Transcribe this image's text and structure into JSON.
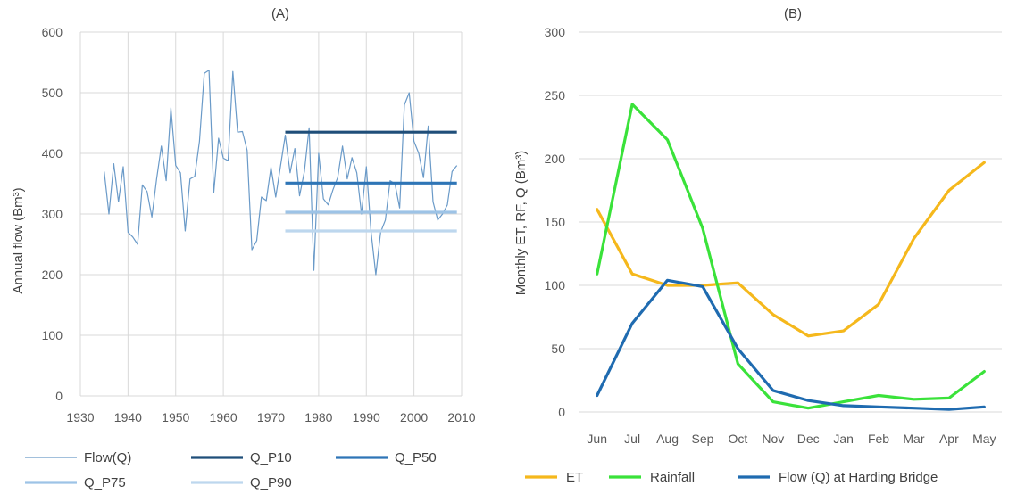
{
  "colors": {
    "flow": "#6a9ac8",
    "q_p10": "#1f4e79",
    "q_p50": "#2e75b6",
    "q_p75": "#9dc3e6",
    "q_p90": "#bdd7ee",
    "et": "#f5b81c",
    "rainfall": "#3ae23a",
    "flow_hb": "#1f6bb0",
    "grid": "#d9d9d9",
    "axis_text": "#595959"
  },
  "chart_data": [
    {
      "type": "line",
      "title": "(A)",
      "ylabel": "Annual flow (Bm³)",
      "xlabel": "",
      "xlim": [
        1930,
        2010
      ],
      "ylim": [
        0,
        600
      ],
      "xticks": [
        "1930",
        "1940",
        "1950",
        "1960",
        "1970",
        "1980",
        "1990",
        "2000",
        "2010"
      ],
      "yticks": [
        "0",
        "100",
        "200",
        "300",
        "400",
        "500",
        "600"
      ],
      "grid": "vertical-and-horizontal",
      "legend": "bottom",
      "series": [
        {
          "name": "Flow(Q)",
          "x": [
            1935,
            1936,
            1937,
            1938,
            1939,
            1940,
            1941,
            1942,
            1943,
            1944,
            1945,
            1946,
            1947,
            1948,
            1949,
            1950,
            1951,
            1952,
            1953,
            1954,
            1955,
            1956,
            1957,
            1958,
            1959,
            1960,
            1961,
            1962,
            1963,
            1964,
            1965,
            1966,
            1967,
            1968,
            1969,
            1970,
            1971,
            1973,
            1974,
            1975,
            1976,
            1977,
            1978,
            1979,
            1980,
            1981,
            1982,
            1983,
            1984,
            1985,
            1986,
            1987,
            1988,
            1989,
            1990,
            1991,
            1992,
            1993,
            1994,
            1995,
            1996,
            1997,
            1998,
            1999,
            2000,
            2001,
            2002,
            2003,
            2004,
            2005,
            2006,
            2007,
            2008,
            2009
          ],
          "values": [
            370,
            300,
            383,
            320,
            378,
            270,
            262,
            250,
            348,
            337,
            295,
            358,
            412,
            355,
            475,
            380,
            368,
            272,
            358,
            362,
            420,
            532,
            537,
            335,
            425,
            392,
            388,
            535,
            435,
            436,
            405,
            241,
            256,
            328,
            322,
            377,
            328,
            430,
            368,
            408,
            330,
            370,
            442,
            207,
            400,
            325,
            315,
            340,
            360,
            412,
            358,
            393,
            368,
            300,
            378,
            270,
            200,
            270,
            290,
            355,
            350,
            310,
            480,
            500,
            420,
            400,
            360,
            445,
            320,
            290,
            300,
            315,
            370,
            380
          ]
        },
        {
          "name": "Q_P10",
          "x": [
            1973,
            2009
          ],
          "values": [
            435,
            435
          ]
        },
        {
          "name": "Q_P50",
          "x": [
            1973,
            2009
          ],
          "values": [
            351,
            351
          ]
        },
        {
          "name": "Q_P75",
          "x": [
            1973,
            2009
          ],
          "values": [
            303,
            303
          ]
        },
        {
          "name": "Q_P90",
          "x": [
            1973,
            2009
          ],
          "values": [
            272,
            272
          ]
        }
      ]
    },
    {
      "type": "line",
      "title": "(B)",
      "ylabel": "Monthly ET, RF, Q (Bm³)",
      "xlabel": "",
      "ylim": [
        0,
        300
      ],
      "categories": [
        "Jun",
        "Jul",
        "Aug",
        "Sep",
        "Oct",
        "Nov",
        "Dec",
        "Jan",
        "Feb",
        "Mar",
        "Apr",
        "May"
      ],
      "yticks": [
        "0",
        "50",
        "100",
        "150",
        "200",
        "250",
        "300"
      ],
      "grid": "horizontal",
      "legend": "bottom",
      "series": [
        {
          "name": "ET",
          "values": [
            160,
            109,
            100,
            100,
            102,
            77,
            60,
            64,
            85,
            137,
            175,
            197
          ]
        },
        {
          "name": "Rainfall",
          "values": [
            109,
            243,
            215,
            145,
            38,
            8,
            3,
            8,
            13,
            10,
            11,
            32
          ]
        },
        {
          "name": "Flow (Q) at Harding Bridge",
          "values": [
            13,
            70,
            104,
            99,
            50,
            17,
            9,
            5,
            4,
            3,
            2,
            4
          ]
        }
      ]
    }
  ]
}
